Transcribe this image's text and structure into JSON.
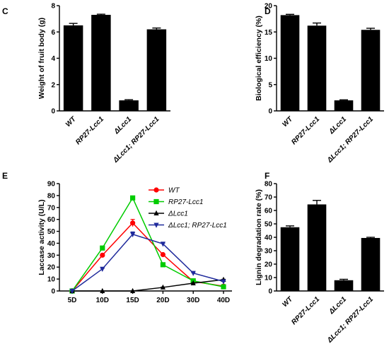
{
  "chart_data": [
    {
      "panel": "C",
      "type": "bar",
      "ylabel": "Weight of fruit body (g)",
      "ylim": [
        0,
        8
      ],
      "yticks": [
        0,
        2,
        4,
        6,
        8
      ],
      "categories": [
        "WT",
        "RP27-Lcc1",
        "ΔLcc1",
        "ΔLcc1; RP27-Lcc1"
      ],
      "values": [
        6.5,
        7.3,
        0.8,
        6.2
      ],
      "errors": [
        0.15,
        0.05,
        0.05,
        0.1
      ],
      "bar_color": "#000000"
    },
    {
      "panel": "D",
      "type": "bar",
      "ylabel": "Biological efficiency (%)",
      "ylim": [
        0,
        20
      ],
      "yticks": [
        0,
        5,
        10,
        15,
        20
      ],
      "categories": [
        "WT",
        "RP27-Lcc1",
        "ΔLcc1",
        "ΔLcc1; RP27-Lcc1"
      ],
      "values": [
        18.2,
        16.2,
        2.0,
        15.4
      ],
      "errors": [
        0.15,
        0.5,
        0.1,
        0.3
      ],
      "bar_color": "#000000"
    },
    {
      "panel": "E",
      "type": "line",
      "ylabel": "Laccase activity (U/L)",
      "ylim": [
        0,
        90
      ],
      "yticks": [
        0,
        10,
        20,
        30,
        40,
        50,
        60,
        70,
        80,
        90
      ],
      "x": [
        "5D",
        "10D",
        "15D",
        "20D",
        "30D",
        "40D"
      ],
      "legend_position": "top-right",
      "series": [
        {
          "name": "WT",
          "values": [
            0,
            30,
            57,
            30.5,
            8,
            4
          ],
          "errors": [
            0,
            0.5,
            3,
            0.5,
            0.5,
            0.3
          ],
          "color": "#ff0000",
          "marker": "circle"
        },
        {
          "name": "RP27-Lcc1",
          "values": [
            0,
            36,
            78,
            22,
            8.5,
            3.5
          ],
          "errors": [
            0,
            0.5,
            1,
            0.5,
            0.5,
            0.3
          ],
          "color": "#00cc00",
          "marker": "square"
        },
        {
          "name": "ΔLcc1",
          "values": [
            0,
            0,
            0,
            3,
            6.5,
            9.5
          ],
          "errors": [
            0,
            0,
            0,
            0.3,
            0.3,
            0.3
          ],
          "color": "#000000",
          "marker": "triangle-up"
        },
        {
          "name": "ΔLcc1; RP27-Lcc1",
          "values": [
            0,
            18.5,
            47.5,
            39.5,
            15,
            8
          ],
          "errors": [
            0,
            0.5,
            2,
            0.5,
            0.5,
            0.3
          ],
          "color": "#1f2a9c",
          "marker": "triangle-down"
        }
      ]
    },
    {
      "panel": "F",
      "type": "bar",
      "ylabel": "Lignin degradation rate (%)",
      "ylim": [
        0,
        80
      ],
      "yticks": [
        0,
        10,
        20,
        30,
        40,
        50,
        60,
        70,
        80
      ],
      "categories": [
        "WT",
        "RP27-Lcc1",
        "ΔLcc1",
        "ΔLcc1; RP27-Lcc1"
      ],
      "values": [
        47.5,
        64.5,
        8,
        39.5
      ],
      "errors": [
        1,
        3,
        0.7,
        0.5
      ],
      "bar_color": "#000000"
    }
  ]
}
